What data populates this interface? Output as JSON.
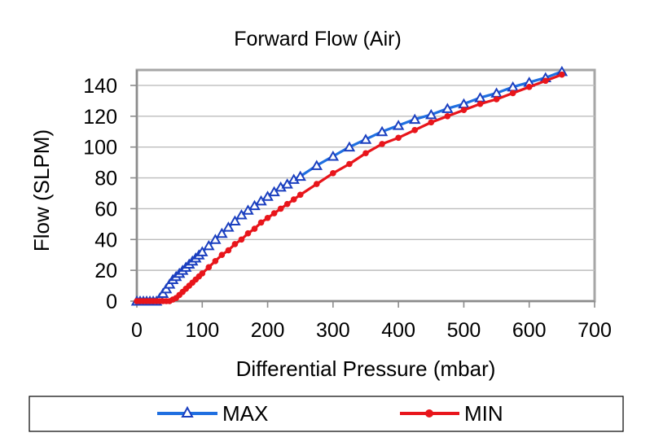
{
  "chart_data": {
    "type": "line",
    "title": "Forward Flow (Air)",
    "xlabel": "Differential Pressure (mbar)",
    "ylabel": "Flow (SLPM)",
    "xlim": [
      0,
      700
    ],
    "ylim": [
      0,
      150
    ],
    "x_ticks": [
      "0",
      "100",
      "200",
      "300",
      "400",
      "500",
      "600",
      "700"
    ],
    "y_ticks": [
      "0",
      "20",
      "40",
      "60",
      "80",
      "100",
      "120",
      "140"
    ],
    "grid": "horizontal",
    "legend_position": "bottom",
    "series": [
      {
        "name": "MAX",
        "color": "#1f6fe0",
        "marker": "triangle",
        "x": [
          0,
          5,
          10,
          15,
          20,
          25,
          30,
          35,
          40,
          45,
          50,
          55,
          60,
          65,
          70,
          75,
          80,
          85,
          90,
          95,
          100,
          110,
          120,
          130,
          140,
          150,
          160,
          170,
          180,
          190,
          200,
          210,
          220,
          230,
          240,
          250,
          275,
          300,
          325,
          350,
          375,
          400,
          425,
          450,
          475,
          500,
          525,
          550,
          575,
          600,
          625,
          650
        ],
        "values": [
          0,
          0,
          0,
          0,
          0,
          0,
          0,
          2,
          5,
          8,
          11,
          14,
          16,
          18,
          20,
          22,
          24,
          26,
          28,
          30,
          32,
          36,
          40,
          44,
          48,
          52,
          56,
          59,
          62,
          65,
          68,
          71,
          74,
          76,
          79,
          81,
          88,
          94,
          100,
          105,
          110,
          114,
          118,
          121,
          125,
          128,
          132,
          135,
          139,
          142,
          145,
          149
        ]
      },
      {
        "name": "MIN",
        "color": "#e8151b",
        "marker": "circle",
        "x": [
          0,
          5,
          10,
          15,
          20,
          25,
          30,
          35,
          40,
          45,
          50,
          55,
          60,
          65,
          70,
          75,
          80,
          85,
          90,
          95,
          100,
          110,
          120,
          130,
          140,
          150,
          160,
          170,
          180,
          190,
          200,
          210,
          220,
          230,
          240,
          250,
          275,
          300,
          325,
          350,
          375,
          400,
          425,
          450,
          475,
          500,
          525,
          550,
          575,
          600,
          625,
          650
        ],
        "values": [
          0,
          0,
          0,
          0,
          0,
          0,
          0,
          0,
          0,
          0,
          0,
          1,
          2,
          4,
          6,
          8,
          10,
          12,
          14,
          16,
          18,
          22,
          26,
          30,
          33,
          37,
          40,
          44,
          47,
          51,
          54,
          57,
          60,
          63,
          66,
          69,
          76,
          83,
          89,
          96,
          102,
          106,
          111,
          116,
          120,
          124,
          128,
          131,
          135,
          139,
          143,
          147
        ]
      }
    ]
  }
}
